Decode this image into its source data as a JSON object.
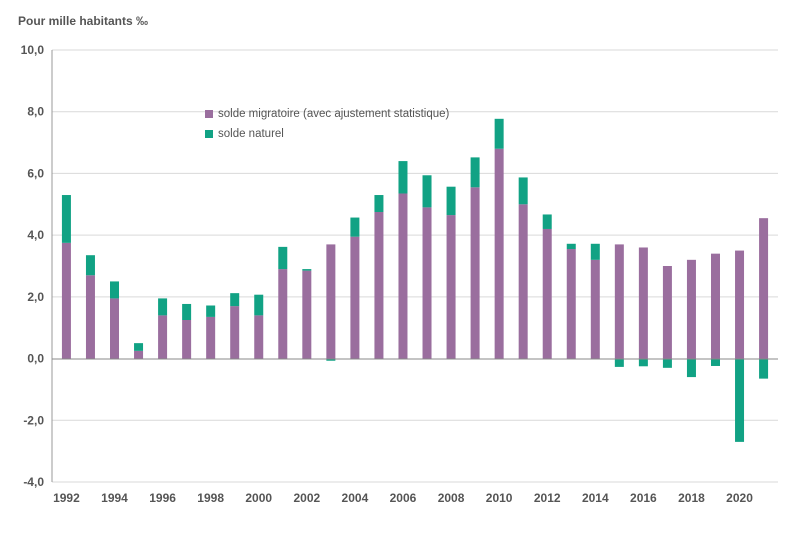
{
  "chart_data": {
    "type": "bar",
    "stacked": true,
    "ylabel": "Pour mille habitants ‰",
    "ylim": [
      -4,
      10
    ],
    "yticks": [
      -4,
      -2,
      0,
      2,
      4,
      6,
      8,
      10
    ],
    "ytick_labels": [
      "-4,0",
      "-2,0",
      "0,0",
      "2,0",
      "4,0",
      "6,0",
      "8,0",
      "10,0"
    ],
    "grid": true,
    "legend_position": "top-left",
    "categories": [
      1992,
      1993,
      1994,
      1995,
      1996,
      1997,
      1998,
      1999,
      2000,
      2001,
      2002,
      2003,
      2004,
      2005,
      2006,
      2007,
      2008,
      2009,
      2010,
      2011,
      2012,
      2013,
      2014,
      2015,
      2016,
      2017,
      2018,
      2019,
      2020,
      2021
    ],
    "xtick_labels": [
      "1992",
      "1994",
      "1996",
      "1998",
      "2000",
      "2002",
      "2004",
      "2006",
      "2008",
      "2010",
      "2012",
      "2014",
      "2016",
      "2018",
      "2020"
    ],
    "series": [
      {
        "name": "solde migratoire (avec ajustement statistique)",
        "color": "#9a6e9e",
        "values": [
          3.75,
          2.7,
          1.95,
          0.25,
          1.4,
          1.25,
          1.35,
          1.7,
          1.4,
          2.9,
          2.85,
          3.7,
          3.95,
          4.75,
          5.35,
          4.9,
          4.65,
          5.55,
          6.8,
          5.0,
          4.2,
          3.55,
          3.2,
          3.7,
          3.6,
          3.0,
          3.2,
          3.4,
          3.5,
          4.55
        ]
      },
      {
        "name": "solde naturel",
        "color": "#11a284",
        "values": [
          1.55,
          0.65,
          0.55,
          0.25,
          0.55,
          0.52,
          0.37,
          0.42,
          0.67,
          0.72,
          0.05,
          -0.07,
          0.62,
          0.55,
          1.05,
          1.04,
          0.92,
          0.97,
          0.97,
          0.87,
          0.47,
          0.17,
          0.52,
          -0.27,
          -0.25,
          -0.3,
          -0.6,
          -0.24,
          -2.7,
          -0.65
        ]
      }
    ]
  }
}
